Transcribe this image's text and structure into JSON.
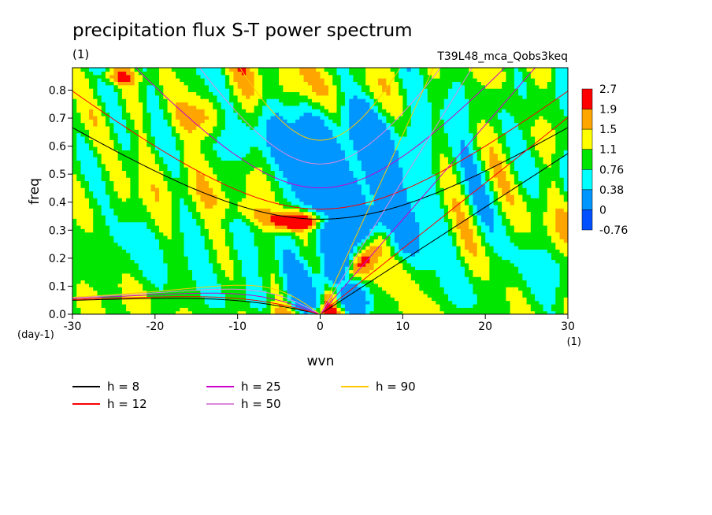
{
  "title": "precipitation flux S-T power spectrum",
  "subtitle_left": "(1)",
  "subtitle_right": "T39L48_mca_Qobs3keq",
  "chart_data": {
    "type": "heatmap",
    "xlabel": "wvn",
    "ylabel": "freq",
    "x_unit": "(1)",
    "y_unit": "(day-1)",
    "xlim": [
      -30,
      30
    ],
    "ylim": [
      0,
      0.88
    ],
    "xticks": [
      "-30",
      "-20",
      "-10",
      "0",
      "10",
      "20",
      "30"
    ],
    "yticks": [
      "0.0",
      "0.1",
      "0.2",
      "0.3",
      "0.4",
      "0.5",
      "0.6",
      "0.7",
      "0.8"
    ],
    "colorbar": {
      "levels": [
        "2.7",
        "1.9",
        "1.5",
        "1.1",
        "0.76",
        "0.38",
        "0",
        "-0.76"
      ],
      "colors": [
        "#ff0000",
        "#ffa500",
        "#ffff00",
        "#00e600",
        "#00ffff",
        "#0096ff",
        "#0050ff"
      ]
    },
    "dispersion_curves": [
      {
        "label": "h =  8",
        "h": 8,
        "color": "#000000"
      },
      {
        "label": "h = 12",
        "h": 12,
        "color": "#ff0000"
      },
      {
        "label": "h = 25",
        "h": 25,
        "color": "#cc00cc"
      },
      {
        "label": "h = 50",
        "h": 50,
        "color": "#dd88dd"
      },
      {
        "label": "h = 90",
        "h": 90,
        "color": "#ffc800"
      }
    ]
  }
}
